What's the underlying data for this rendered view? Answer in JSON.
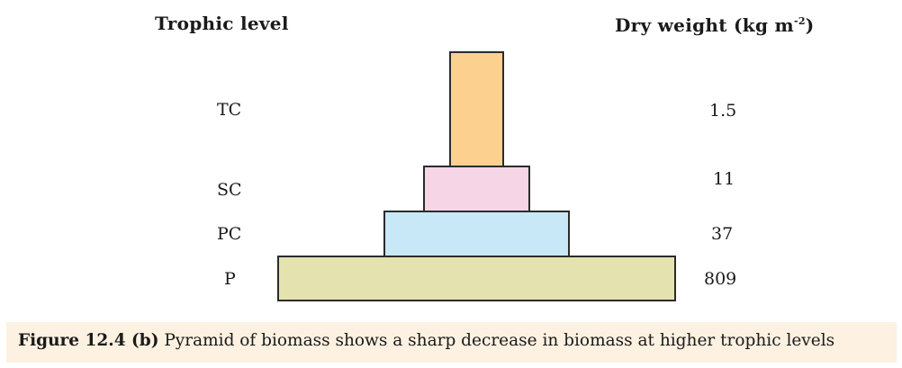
{
  "headers": {
    "trophic_level": "Trophic level",
    "dry_weight": "Dry weight (kg m",
    "dry_weight_exp": "-2",
    "dry_weight_close": ")"
  },
  "levels": [
    {
      "label": "TC",
      "value": "1.5",
      "color": "#fcd190"
    },
    {
      "label": "SC",
      "value": "11",
      "color": "#f6d5e6"
    },
    {
      "label": "PC",
      "value": "37",
      "color": "#c8e8f8"
    },
    {
      "label": "P",
      "value": "809",
      "color": "#e4e3b0"
    }
  ],
  "caption": {
    "figure": "Figure 12.4 (b)",
    "text": " Pyramid of biomass shows a sharp decrease in biomass at higher trophic levels"
  }
}
